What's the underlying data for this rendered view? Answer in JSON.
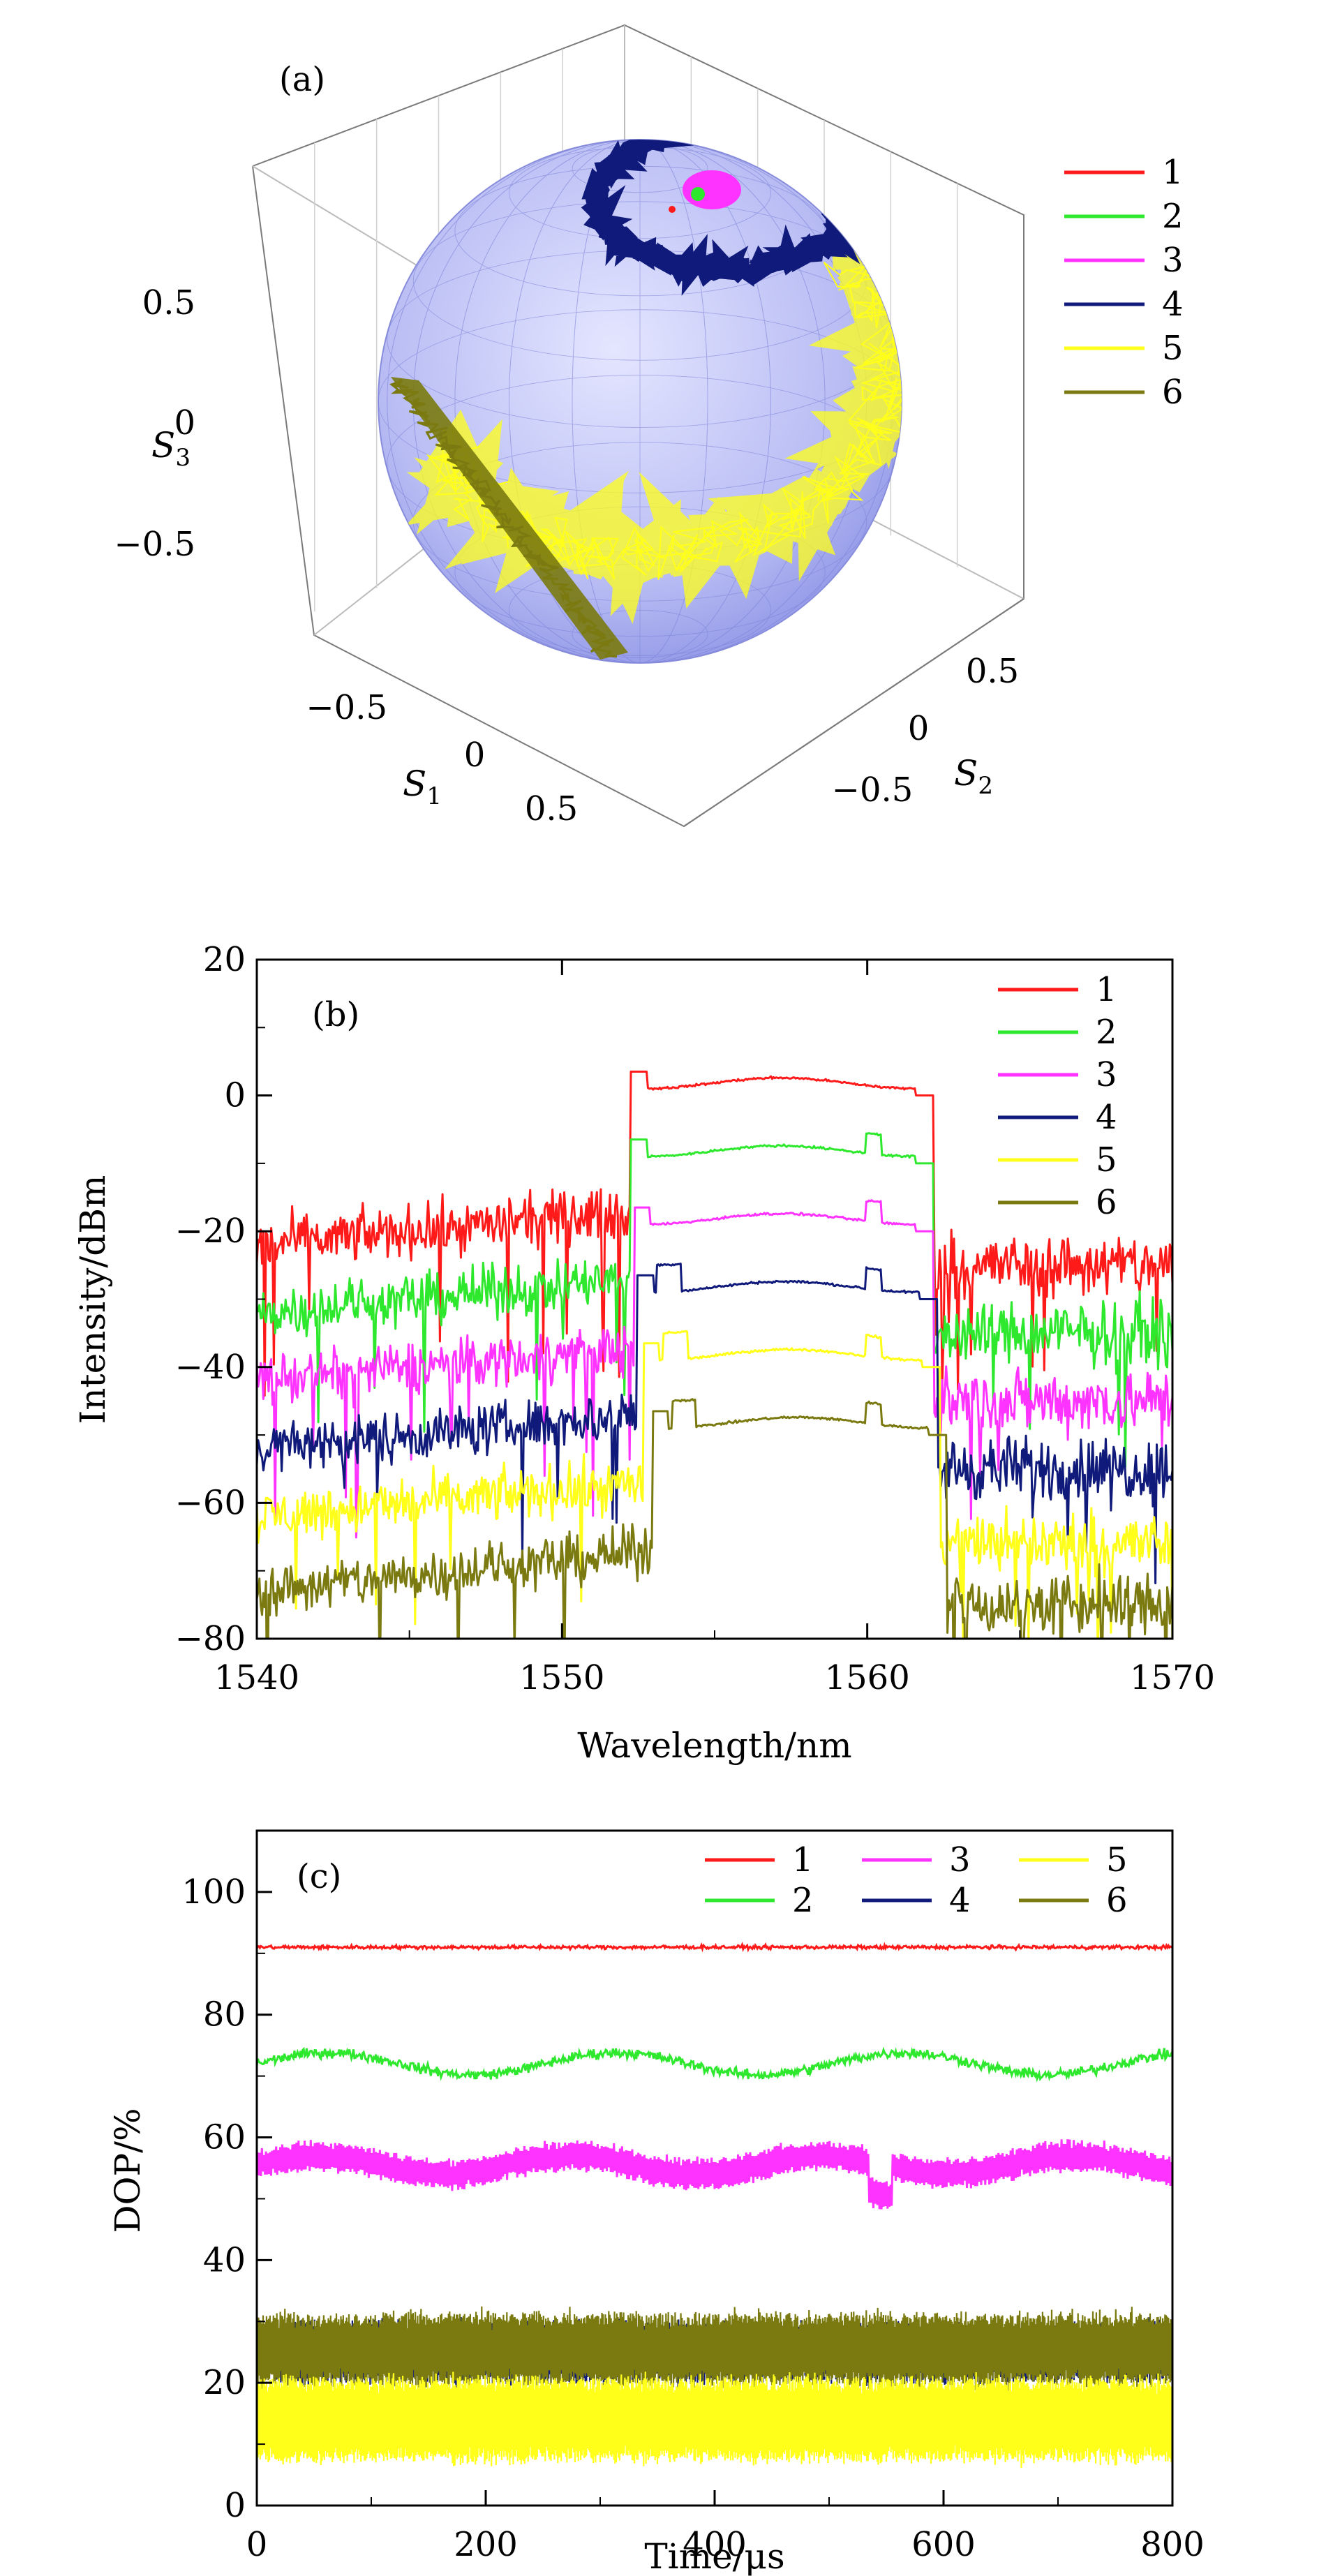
{
  "chart_data": [
    {
      "type": "scatter3d",
      "panel_label": "(a)",
      "title": "",
      "axes": {
        "x": {
          "label": "S",
          "sub": "1",
          "ticks": [
            "−0.5",
            "0",
            "0.5"
          ],
          "tick_values": [
            -0.5,
            0,
            0.5
          ],
          "range": [
            -1,
            1
          ]
        },
        "y": {
          "label": "S",
          "sub": "2",
          "ticks": [
            "−0.5",
            "0",
            "0.5"
          ],
          "tick_values": [
            -0.5,
            0,
            0.5
          ],
          "range": [
            -1,
            1
          ]
        },
        "z": {
          "label": "S",
          "sub": "3",
          "ticks": [
            "0.5",
            "0",
            "−0.5"
          ],
          "tick_values": [
            0.5,
            0,
            -0.5
          ],
          "range": [
            -1,
            1
          ]
        }
      },
      "legend": {
        "position": "right",
        "entries": [
          "1",
          "2",
          "3",
          "4",
          "5",
          "6"
        ]
      },
      "series": [
        {
          "name": "1",
          "color": "#ff1a1a",
          "description": "single point near north pole"
        },
        {
          "name": "2",
          "color": "#2ee82e",
          "description": "small dot near north pole"
        },
        {
          "name": "3",
          "color": "#ff33ff",
          "description": "small cluster near north pole"
        },
        {
          "name": "4",
          "color": "#101a7a",
          "description": "ring around north pole"
        },
        {
          "name": "5",
          "color": "#ffff1a",
          "description": "wide band across sphere"
        },
        {
          "name": "6",
          "color": "#7a7a10",
          "description": "band on left limb"
        }
      ]
    },
    {
      "type": "line",
      "panel_label": "(b)",
      "title": "",
      "xlabel": "Wavelength/nm",
      "ylabel": "Intensity/dBm",
      "xlim": [
        1540,
        1570
      ],
      "ylim": [
        -80,
        20
      ],
      "xticks": [
        1540,
        1550,
        1560,
        1570
      ],
      "yticks": [
        20,
        0,
        -20,
        -40,
        -60,
        -80
      ],
      "ytick_labels": [
        "20",
        "0",
        "−20",
        "−40",
        "−60",
        "−80"
      ],
      "legend": {
        "position": "top-right",
        "entries": [
          "1",
          "2",
          "3",
          "4",
          "5",
          "6"
        ]
      },
      "series": [
        {
          "name": "1",
          "color": "#ff1a1a",
          "offset_db": 0,
          "flat_top_db": 3,
          "edges_nm": [
            1552.5,
            1561.8
          ],
          "noise_floor_db": [
            -22,
            -17
          ],
          "right_floor_db": -25
        },
        {
          "name": "2",
          "color": "#2ee82e",
          "offset_db": -10,
          "flat_top_db": -7,
          "edges_nm": [
            1552.5,
            1561.8
          ],
          "noise_floor_db": [
            -32,
            -27
          ],
          "right_floor_db": -35
        },
        {
          "name": "3",
          "color": "#ff33ff",
          "offset_db": -20,
          "flat_top_db": -17,
          "edges_nm": [
            1552.6,
            1561.8
          ],
          "noise_floor_db": [
            -42,
            -37
          ],
          "right_floor_db": -45
        },
        {
          "name": "4",
          "color": "#101a7a",
          "offset_db": -30,
          "flat_top_db": -27,
          "edges_nm": [
            1552.7,
            1561.9
          ],
          "noise_floor_db": [
            -52,
            -47
          ],
          "right_floor_db": -55
        },
        {
          "name": "5",
          "color": "#ffff1a",
          "offset_db": -40,
          "flat_top_db": -37,
          "edges_nm": [
            1552.9,
            1562.0
          ],
          "noise_floor_db": [
            -62,
            -57
          ],
          "right_floor_db": -66
        },
        {
          "name": "6",
          "color": "#7a7a10",
          "offset_db": -50,
          "flat_top_db": -47,
          "edges_nm": [
            1553.2,
            1562.2
          ],
          "noise_floor_db": [
            -73,
            -67
          ],
          "right_floor_db": -75
        }
      ]
    },
    {
      "type": "line",
      "panel_label": "(c)",
      "title": "",
      "xlabel": "Time/μs",
      "ylabel": "DOP/%",
      "xlim": [
        0,
        800
      ],
      "ylim": [
        0,
        110
      ],
      "xticks": [
        0,
        200,
        400,
        600,
        800
      ],
      "yticks": [
        0,
        20,
        40,
        60,
        80,
        100
      ],
      "legend": {
        "position": "top-right",
        "columns": 3,
        "entries": [
          "1",
          "3",
          "5",
          "2",
          "4",
          "6"
        ]
      },
      "series": [
        {
          "name": "1",
          "color": "#ff1a1a",
          "mean": 91,
          "fluctuation": 0.6
        },
        {
          "name": "2",
          "color": "#2ee82e",
          "mean": 72,
          "fluctuation": 2.5
        },
        {
          "name": "3",
          "color": "#ff33ff",
          "mean": 55.5,
          "fluctuation": 3.5
        },
        {
          "name": "4",
          "color": "#101a7a",
          "mean": 25,
          "fluctuation": 4
        },
        {
          "name": "5",
          "color": "#ffff1a",
          "mean": 14,
          "fluctuation": 6
        },
        {
          "name": "6",
          "color": "#7a7a10",
          "mean": 25.5,
          "fluctuation": 5
        }
      ]
    }
  ]
}
